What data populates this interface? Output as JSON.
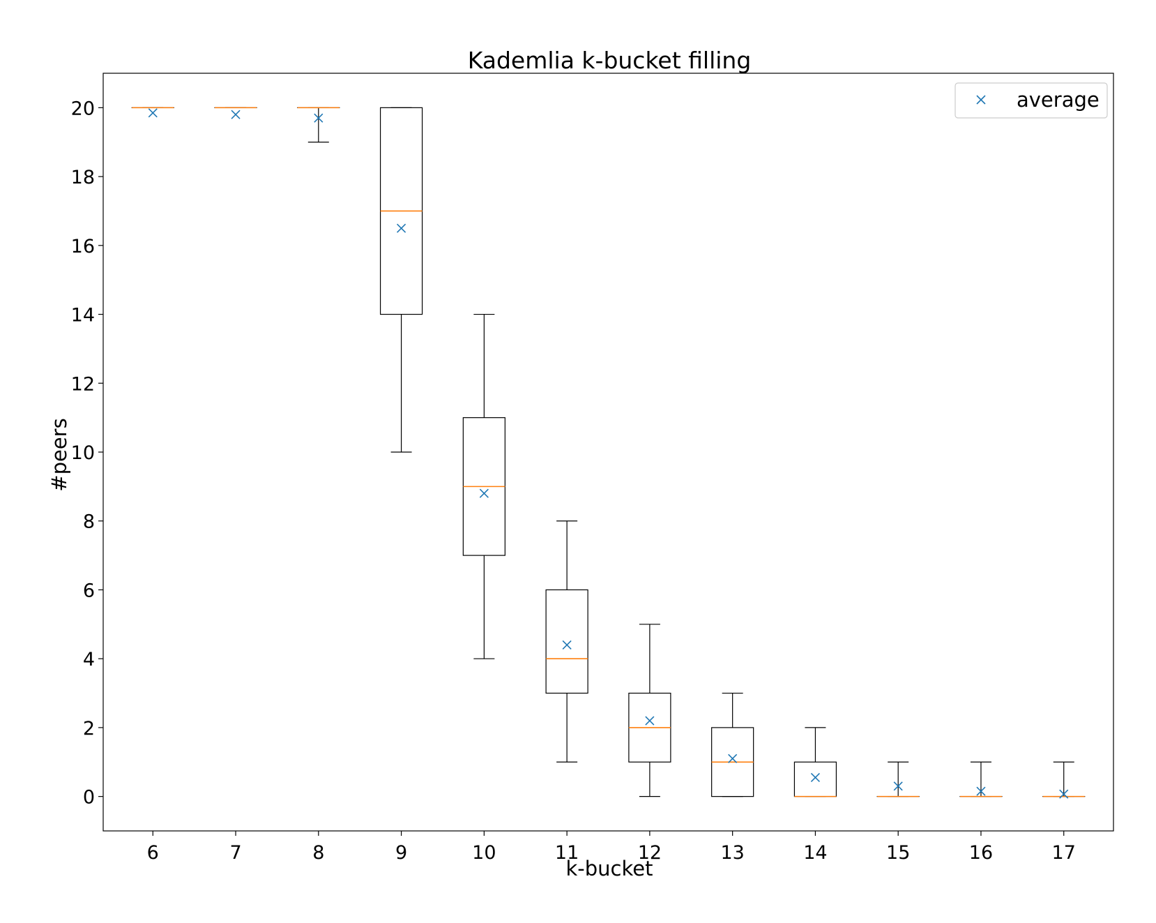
{
  "chart_data": {
    "type": "box",
    "title": "Kademlia k-bucket filling",
    "xlabel": "k-bucket",
    "ylabel": "#peers",
    "ylim": [
      -1,
      21
    ],
    "yticks": [
      0,
      2,
      4,
      6,
      8,
      10,
      12,
      14,
      16,
      18,
      20
    ],
    "grid": false,
    "legend": {
      "position": "top-right",
      "entries": [
        "average"
      ]
    },
    "colors": {
      "box": "#000000",
      "median": "#ff7f0e",
      "average": "#1f77b4"
    },
    "boxes": [
      {
        "category": "6",
        "whislo": 20,
        "q1": 20,
        "med": 20,
        "q3": 20,
        "whishi": 20,
        "mean": 19.85
      },
      {
        "category": "7",
        "whislo": 20,
        "q1": 20,
        "med": 20,
        "q3": 20,
        "whishi": 20,
        "mean": 19.8
      },
      {
        "category": "8",
        "whislo": 19,
        "q1": 20,
        "med": 20,
        "q3": 20,
        "whishi": 20,
        "mean": 19.7
      },
      {
        "category": "9",
        "whislo": 10,
        "q1": 14,
        "med": 17,
        "q3": 20,
        "whishi": 20,
        "mean": 16.5
      },
      {
        "category": "10",
        "whislo": 4,
        "q1": 7,
        "med": 9,
        "q3": 11,
        "whishi": 14,
        "mean": 8.8
      },
      {
        "category": "11",
        "whislo": 1,
        "q1": 3,
        "med": 4,
        "q3": 6,
        "whishi": 8,
        "mean": 4.4
      },
      {
        "category": "12",
        "whislo": 0,
        "q1": 1,
        "med": 2,
        "q3": 3,
        "whishi": 5,
        "mean": 2.2
      },
      {
        "category": "13",
        "whislo": 0,
        "q1": 0,
        "med": 1,
        "q3": 2,
        "whishi": 3,
        "mean": 1.1
      },
      {
        "category": "14",
        "whislo": 0,
        "q1": 0,
        "med": 0,
        "q3": 1,
        "whishi": 2,
        "mean": 0.55
      },
      {
        "category": "15",
        "whislo": 0,
        "q1": 0,
        "med": 0,
        "q3": 0,
        "whishi": 1,
        "mean": 0.3
      },
      {
        "category": "16",
        "whislo": 0,
        "q1": 0,
        "med": 0,
        "q3": 0,
        "whishi": 1,
        "mean": 0.15
      },
      {
        "category": "17",
        "whislo": 0,
        "q1": 0,
        "med": 0,
        "q3": 0,
        "whishi": 1,
        "mean": 0.07
      }
    ]
  }
}
